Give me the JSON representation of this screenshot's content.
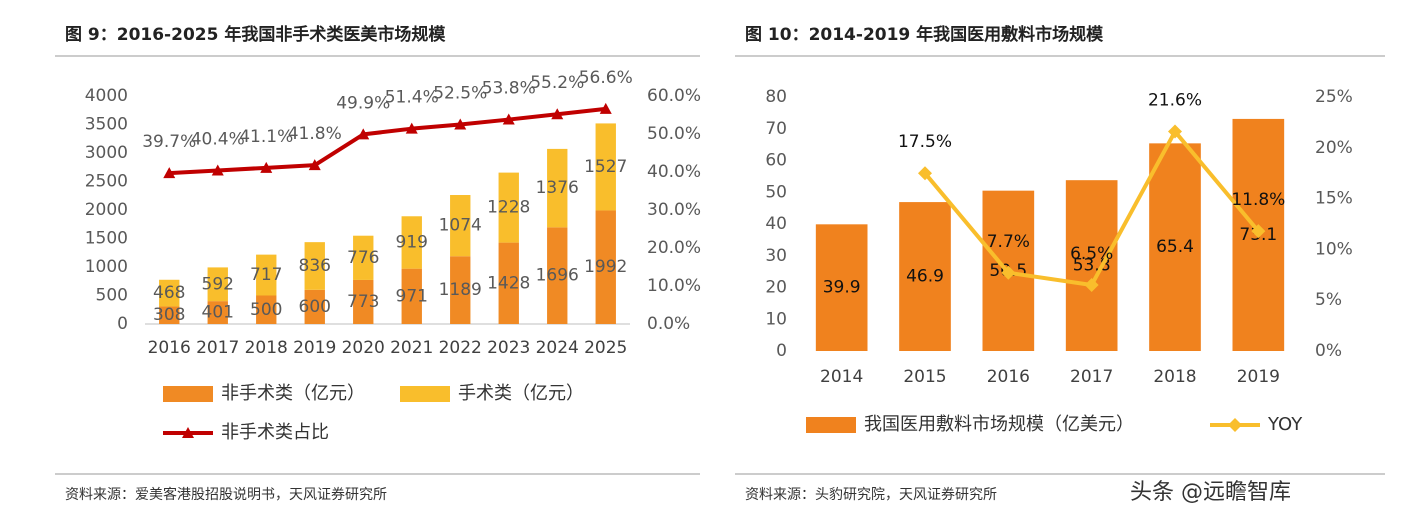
{
  "chart_data": [
    {
      "type": "bar",
      "title": "图 9：2016-2025 年我国非手术类医美市场规模",
      "categories": [
        "2016",
        "2017",
        "2018",
        "2019",
        "2020",
        "2021",
        "2022",
        "2023",
        "2024",
        "2025"
      ],
      "series": [
        {
          "name": "非手术类（亿元）",
          "color": "#f08a24",
          "values": [
            308,
            401,
            500,
            600,
            773,
            971,
            1189,
            1428,
            1696,
            1992
          ]
        },
        {
          "name": "手术类（亿元）",
          "color": "#f9be2c",
          "values": [
            468,
            592,
            717,
            836,
            776,
            919,
            1074,
            1228,
            1376,
            1527
          ]
        },
        {
          "name": "非手术类占比",
          "color": "#c00000",
          "axis": "y2",
          "marker": "triangle",
          "values": [
            39.7,
            40.4,
            41.1,
            41.8,
            49.9,
            51.4,
            52.5,
            53.8,
            55.2,
            56.6
          ],
          "value_labels": [
            "39.7%",
            "40.4%",
            "41.1%",
            "41.8%",
            "49.9%",
            "51.4%",
            "52.5%",
            "53.8%",
            "55.2%",
            "56.6%"
          ]
        }
      ],
      "ylim": [
        0,
        4000
      ],
      "yticks": [
        0,
        500,
        1000,
        1500,
        2000,
        2500,
        3000,
        3500,
        4000
      ],
      "y2lim": [
        0,
        60
      ],
      "y2ticks": [
        {
          "value": 0,
          "label": "0.0%"
        },
        {
          "value": 10,
          "label": "10.0%"
        },
        {
          "value": 20,
          "label": "20.0%"
        },
        {
          "value": 30,
          "label": "30.0%"
        },
        {
          "value": 40,
          "label": "40.0%"
        },
        {
          "value": 50,
          "label": "50.0%"
        },
        {
          "value": 60,
          "label": "60.0%"
        }
      ],
      "source": "资料来源：爱美客港股招股说明书，天风证券研究所"
    },
    {
      "type": "bar",
      "title": "图 10：2014-2019 年我国医用敷料市场规模",
      "categories": [
        "2014",
        "2015",
        "2016",
        "2017",
        "2018",
        "2019"
      ],
      "series": [
        {
          "name": "我国医用敷料市场规模（亿美元）",
          "color": "#f0821e",
          "values": [
            39.9,
            46.9,
            50.5,
            53.8,
            65.4,
            73.1
          ]
        },
        {
          "name": "YOY",
          "color": "#f9be2c",
          "axis": "y2",
          "marker": "diamond",
          "values": [
            null,
            17.5,
            7.7,
            6.5,
            21.6,
            11.8
          ],
          "value_labels": [
            null,
            "17.5%",
            "7.7%",
            "6.5%",
            "21.6%",
            "11.8%"
          ]
        }
      ],
      "ylim": [
        0,
        80
      ],
      "yticks": [
        0,
        10,
        20,
        30,
        40,
        50,
        60,
        70,
        80
      ],
      "y2lim": [
        0,
        25
      ],
      "y2ticks": [
        {
          "value": 0,
          "label": "0%"
        },
        {
          "value": 5,
          "label": "5%"
        },
        {
          "value": 10,
          "label": "10%"
        },
        {
          "value": 15,
          "label": "15%"
        },
        {
          "value": 20,
          "label": "20%"
        },
        {
          "value": 25,
          "label": "25%"
        }
      ],
      "source": "资料来源：头豹研究院，天风证券研究所"
    }
  ],
  "watermark": "头条 @远瞻智库"
}
